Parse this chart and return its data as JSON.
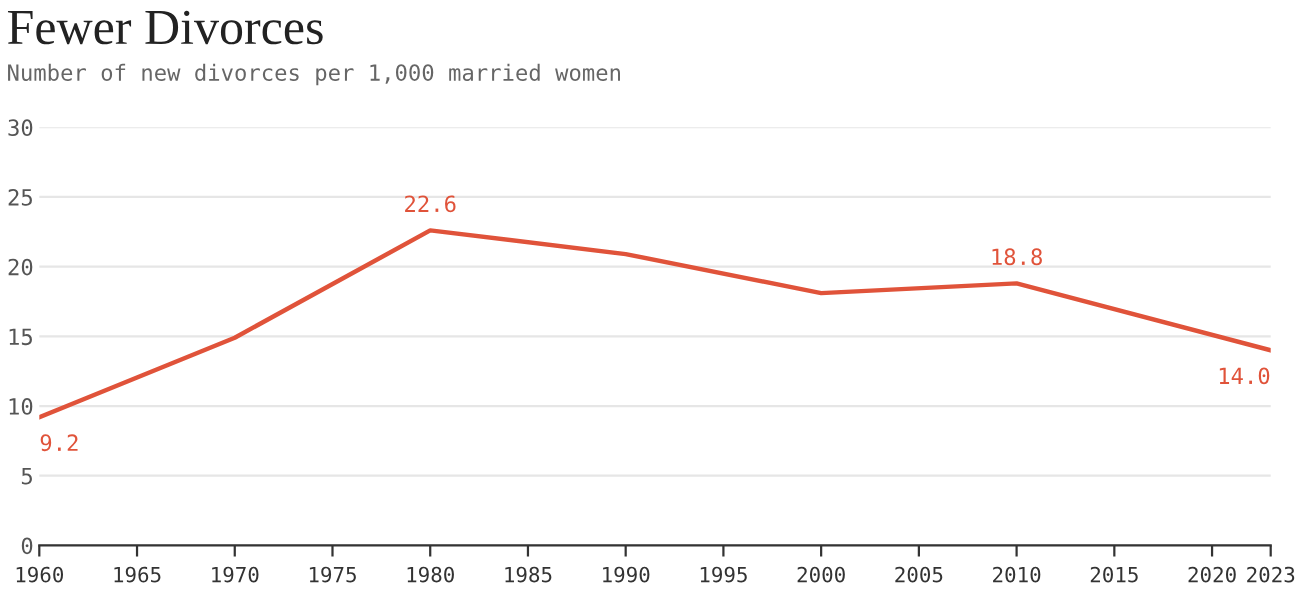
{
  "chart_data": {
    "type": "line",
    "title": "Fewer Divorces",
    "subtitle": "Number of new divorces per 1,000 married women",
    "x": [
      1960,
      1970,
      1980,
      1990,
      2000,
      2010,
      2023
    ],
    "series": [
      {
        "color": "#e0533a",
        "values": [
          9.2,
          14.9,
          22.6,
          20.9,
          18.1,
          18.8,
          14.0
        ],
        "value_labels": [
          "9.2",
          null,
          "22.6",
          null,
          null,
          "18.8",
          "14.0"
        ]
      }
    ],
    "xlim": [
      1960,
      2023
    ],
    "xticks": [
      1960,
      1965,
      1970,
      1975,
      1980,
      1985,
      1990,
      1995,
      2000,
      2005,
      2010,
      2015,
      2020,
      2023
    ],
    "ylim": [
      0,
      30
    ],
    "yticks": [
      0,
      5,
      10,
      15,
      20,
      25,
      30
    ],
    "grid": "y",
    "legend": false,
    "line_style": "solid"
  }
}
